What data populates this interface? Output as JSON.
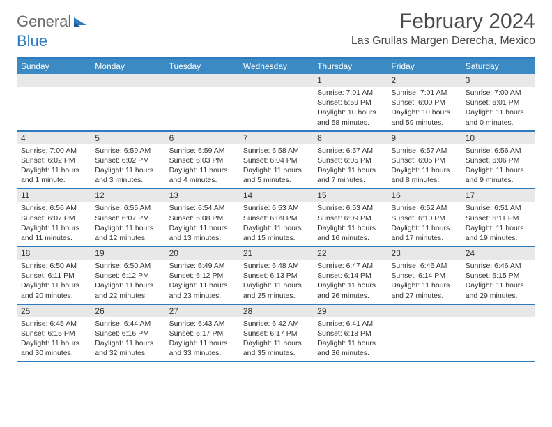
{
  "logo": {
    "part1": "General",
    "part2": "Blue"
  },
  "header": {
    "month": "February 2024",
    "location": "Las Grullas Margen Derecha, Mexico"
  },
  "colors": {
    "accent": "#3b8ac4",
    "divider": "#2e7bbf",
    "daynum_bg": "#e8e8e8",
    "text": "#333333",
    "header_text": "#4a4a4a"
  },
  "dayHeaders": [
    "Sunday",
    "Monday",
    "Tuesday",
    "Wednesday",
    "Thursday",
    "Friday",
    "Saturday"
  ],
  "weeks": [
    [
      {
        "empty": true
      },
      {
        "empty": true
      },
      {
        "empty": true
      },
      {
        "empty": true
      },
      {
        "num": "1",
        "sunrise": "Sunrise: 7:01 AM",
        "sunset": "Sunset: 5:59 PM",
        "day1": "Daylight: 10 hours",
        "day2": "and 58 minutes."
      },
      {
        "num": "2",
        "sunrise": "Sunrise: 7:01 AM",
        "sunset": "Sunset: 6:00 PM",
        "day1": "Daylight: 10 hours",
        "day2": "and 59 minutes."
      },
      {
        "num": "3",
        "sunrise": "Sunrise: 7:00 AM",
        "sunset": "Sunset: 6:01 PM",
        "day1": "Daylight: 11 hours",
        "day2": "and 0 minutes."
      }
    ],
    [
      {
        "num": "4",
        "sunrise": "Sunrise: 7:00 AM",
        "sunset": "Sunset: 6:02 PM",
        "day1": "Daylight: 11 hours",
        "day2": "and 1 minute."
      },
      {
        "num": "5",
        "sunrise": "Sunrise: 6:59 AM",
        "sunset": "Sunset: 6:02 PM",
        "day1": "Daylight: 11 hours",
        "day2": "and 3 minutes."
      },
      {
        "num": "6",
        "sunrise": "Sunrise: 6:59 AM",
        "sunset": "Sunset: 6:03 PM",
        "day1": "Daylight: 11 hours",
        "day2": "and 4 minutes."
      },
      {
        "num": "7",
        "sunrise": "Sunrise: 6:58 AM",
        "sunset": "Sunset: 6:04 PM",
        "day1": "Daylight: 11 hours",
        "day2": "and 5 minutes."
      },
      {
        "num": "8",
        "sunrise": "Sunrise: 6:57 AM",
        "sunset": "Sunset: 6:05 PM",
        "day1": "Daylight: 11 hours",
        "day2": "and 7 minutes."
      },
      {
        "num": "9",
        "sunrise": "Sunrise: 6:57 AM",
        "sunset": "Sunset: 6:05 PM",
        "day1": "Daylight: 11 hours",
        "day2": "and 8 minutes."
      },
      {
        "num": "10",
        "sunrise": "Sunrise: 6:56 AM",
        "sunset": "Sunset: 6:06 PM",
        "day1": "Daylight: 11 hours",
        "day2": "and 9 minutes."
      }
    ],
    [
      {
        "num": "11",
        "sunrise": "Sunrise: 6:56 AM",
        "sunset": "Sunset: 6:07 PM",
        "day1": "Daylight: 11 hours",
        "day2": "and 11 minutes."
      },
      {
        "num": "12",
        "sunrise": "Sunrise: 6:55 AM",
        "sunset": "Sunset: 6:07 PM",
        "day1": "Daylight: 11 hours",
        "day2": "and 12 minutes."
      },
      {
        "num": "13",
        "sunrise": "Sunrise: 6:54 AM",
        "sunset": "Sunset: 6:08 PM",
        "day1": "Daylight: 11 hours",
        "day2": "and 13 minutes."
      },
      {
        "num": "14",
        "sunrise": "Sunrise: 6:53 AM",
        "sunset": "Sunset: 6:09 PM",
        "day1": "Daylight: 11 hours",
        "day2": "and 15 minutes."
      },
      {
        "num": "15",
        "sunrise": "Sunrise: 6:53 AM",
        "sunset": "Sunset: 6:09 PM",
        "day1": "Daylight: 11 hours",
        "day2": "and 16 minutes."
      },
      {
        "num": "16",
        "sunrise": "Sunrise: 6:52 AM",
        "sunset": "Sunset: 6:10 PM",
        "day1": "Daylight: 11 hours",
        "day2": "and 17 minutes."
      },
      {
        "num": "17",
        "sunrise": "Sunrise: 6:51 AM",
        "sunset": "Sunset: 6:11 PM",
        "day1": "Daylight: 11 hours",
        "day2": "and 19 minutes."
      }
    ],
    [
      {
        "num": "18",
        "sunrise": "Sunrise: 6:50 AM",
        "sunset": "Sunset: 6:11 PM",
        "day1": "Daylight: 11 hours",
        "day2": "and 20 minutes."
      },
      {
        "num": "19",
        "sunrise": "Sunrise: 6:50 AM",
        "sunset": "Sunset: 6:12 PM",
        "day1": "Daylight: 11 hours",
        "day2": "and 22 minutes."
      },
      {
        "num": "20",
        "sunrise": "Sunrise: 6:49 AM",
        "sunset": "Sunset: 6:12 PM",
        "day1": "Daylight: 11 hours",
        "day2": "and 23 minutes."
      },
      {
        "num": "21",
        "sunrise": "Sunrise: 6:48 AM",
        "sunset": "Sunset: 6:13 PM",
        "day1": "Daylight: 11 hours",
        "day2": "and 25 minutes."
      },
      {
        "num": "22",
        "sunrise": "Sunrise: 6:47 AM",
        "sunset": "Sunset: 6:14 PM",
        "day1": "Daylight: 11 hours",
        "day2": "and 26 minutes."
      },
      {
        "num": "23",
        "sunrise": "Sunrise: 6:46 AM",
        "sunset": "Sunset: 6:14 PM",
        "day1": "Daylight: 11 hours",
        "day2": "and 27 minutes."
      },
      {
        "num": "24",
        "sunrise": "Sunrise: 6:46 AM",
        "sunset": "Sunset: 6:15 PM",
        "day1": "Daylight: 11 hours",
        "day2": "and 29 minutes."
      }
    ],
    [
      {
        "num": "25",
        "sunrise": "Sunrise: 6:45 AM",
        "sunset": "Sunset: 6:15 PM",
        "day1": "Daylight: 11 hours",
        "day2": "and 30 minutes."
      },
      {
        "num": "26",
        "sunrise": "Sunrise: 6:44 AM",
        "sunset": "Sunset: 6:16 PM",
        "day1": "Daylight: 11 hours",
        "day2": "and 32 minutes."
      },
      {
        "num": "27",
        "sunrise": "Sunrise: 6:43 AM",
        "sunset": "Sunset: 6:17 PM",
        "day1": "Daylight: 11 hours",
        "day2": "and 33 minutes."
      },
      {
        "num": "28",
        "sunrise": "Sunrise: 6:42 AM",
        "sunset": "Sunset: 6:17 PM",
        "day1": "Daylight: 11 hours",
        "day2": "and 35 minutes."
      },
      {
        "num": "29",
        "sunrise": "Sunrise: 6:41 AM",
        "sunset": "Sunset: 6:18 PM",
        "day1": "Daylight: 11 hours",
        "day2": "and 36 minutes."
      },
      {
        "empty": true
      },
      {
        "empty": true
      }
    ]
  ]
}
